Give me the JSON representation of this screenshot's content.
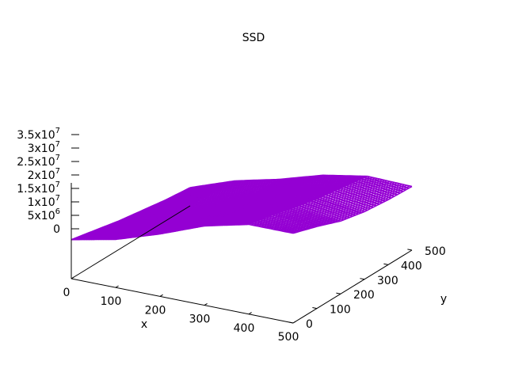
{
  "chart_data": {
    "type": "surface",
    "title": "SSD",
    "xlabel": "x",
    "ylabel": "y",
    "zlabel": "",
    "x_range": [
      0,
      500
    ],
    "y_range": [
      0,
      500
    ],
    "z_range": [
      0,
      35000000
    ],
    "x_ticks": [
      "0",
      "100",
      "200",
      "300",
      "400",
      "500"
    ],
    "y_ticks": [
      "0",
      "100",
      "200",
      "300",
      "400",
      "500"
    ],
    "z_ticks": [
      {
        "mantissa": "0",
        "exp": ""
      },
      {
        "mantissa": "5x10",
        "exp": "6"
      },
      {
        "mantissa": "1x10",
        "exp": "7"
      },
      {
        "mantissa": "1.5x10",
        "exp": "7"
      },
      {
        "mantissa": "2x10",
        "exp": "7"
      },
      {
        "mantissa": "2.5x10",
        "exp": "7"
      },
      {
        "mantissa": "3x10",
        "exp": "7"
      },
      {
        "mantissa": "3.5x10",
        "exp": "7"
      }
    ],
    "grid": false,
    "legend": "none",
    "surface_color": "#9400d3",
    "surface_values": {
      "x": [
        0,
        100,
        200,
        300,
        400,
        500
      ],
      "y": [
        0,
        100,
        200,
        300,
        400,
        500
      ],
      "z": [
        [
          15000000,
          13000000,
          11000000,
          9500000,
          8000000,
          7000000
        ],
        [
          18500000,
          16500000,
          15000000,
          14000000,
          13500000,
          13000000
        ],
        [
          24000000,
          22000000,
          20000000,
          18500000,
          17500000,
          17000000
        ],
        [
          30500000,
          29000000,
          27000000,
          25000000,
          23000000,
          22000000
        ],
        [
          34500000,
          32500000,
          30000000,
          28000000,
          26500000,
          25000000
        ],
        [
          34500000,
          31500000,
          28000000,
          26000000,
          25000000,
          24500000
        ]
      ]
    }
  }
}
